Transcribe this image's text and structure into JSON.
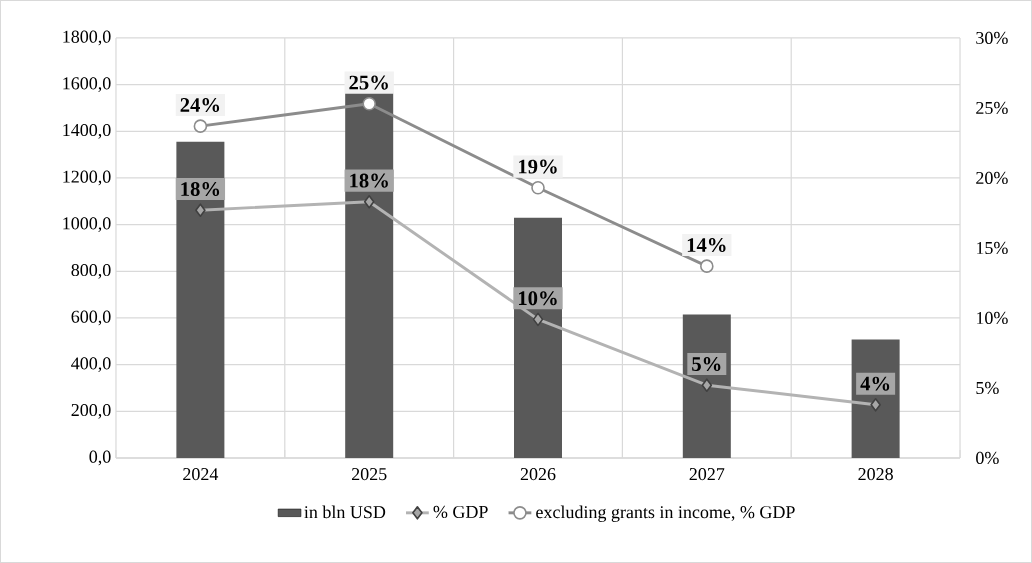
{
  "chart_data": {
    "type": "bar",
    "categories": [
      "2024",
      "2025",
      "2026",
      "2027",
      "2028"
    ],
    "series": [
      {
        "name": "in bln USD",
        "color": "#595959",
        "values": [
          1355,
          1569,
          1029,
          615,
          508
        ]
      },
      {
        "name": "% GDP",
        "type": "line",
        "axis": "y2",
        "color": "#b3b3b3",
        "marker": "diamond",
        "values": [
          17.7,
          18.3,
          9.9,
          5.2,
          3.8
        ],
        "value_labels": [
          "18%",
          "18%",
          "10%",
          "5%",
          "4%"
        ]
      },
      {
        "name": "excluding grants in income, % GDP",
        "type": "line",
        "axis": "y2",
        "color": "#8c8c8c",
        "marker": "circle",
        "values": [
          23.7,
          25.3,
          19.3,
          13.7,
          null
        ],
        "value_labels": [
          "24%",
          "25%",
          "19%",
          "14%",
          null
        ]
      }
    ],
    "ylim": [
      0,
      1800
    ],
    "yticks": [
      {
        "value": 0,
        "label": "0,0"
      },
      {
        "value": 200,
        "label": "200,0"
      },
      {
        "value": 400,
        "label": "400,0"
      },
      {
        "value": 600,
        "label": "600,0"
      },
      {
        "value": 800,
        "label": "800,0"
      },
      {
        "value": 1000,
        "label": "1000,0"
      },
      {
        "value": 1200,
        "label": "1200,0"
      },
      {
        "value": 1400,
        "label": "1400,0"
      },
      {
        "value": 1600,
        "label": "1600,0"
      },
      {
        "value": 1800,
        "label": "1800,0"
      }
    ],
    "y2lim": [
      0,
      30
    ],
    "y2ticks": [
      {
        "value": 0,
        "label": "0%"
      },
      {
        "value": 5,
        "label": "5%"
      },
      {
        "value": 10,
        "label": "10%"
      },
      {
        "value": 15,
        "label": "15%"
      },
      {
        "value": 20,
        "label": "20%"
      },
      {
        "value": 25,
        "label": "25%"
      },
      {
        "value": 30,
        "label": "30%"
      }
    ],
    "grid": true,
    "legend": "bottom"
  }
}
